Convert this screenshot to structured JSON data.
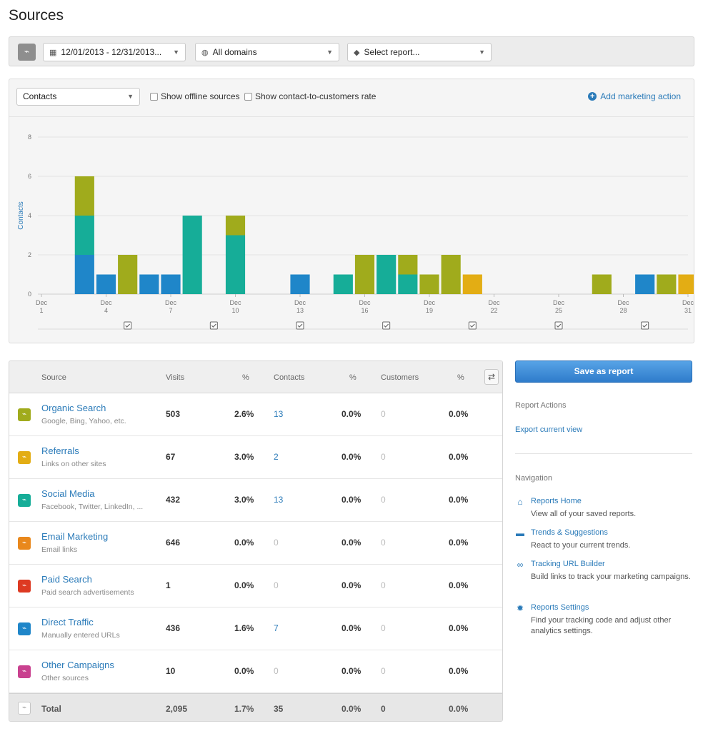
{
  "page": {
    "title": "Sources"
  },
  "toolbar": {
    "date_range": "12/01/2013 - 12/31/2013...",
    "domains": "All domains",
    "report": "Select report..."
  },
  "chart_panel": {
    "metric": "Contacts",
    "show_offline": "Show offline sources",
    "show_rate": "Show contact-to-customers rate",
    "add_action": "Add marketing action"
  },
  "colors": {
    "organic": "#a0ab1c",
    "referrals": "#e3ad14",
    "social": "#16ad98",
    "email": "#e9881c",
    "paid": "#dd3a22",
    "direct": "#1f86c9",
    "other": "#c9418f"
  },
  "chart_data": {
    "type": "bar",
    "stacked": true,
    "ylabel": "Contacts",
    "ylim": [
      0,
      8
    ],
    "yticks": [
      0,
      2,
      4,
      6,
      8
    ],
    "grid": true,
    "days": [
      1,
      2,
      3,
      4,
      5,
      6,
      7,
      8,
      9,
      10,
      11,
      12,
      13,
      14,
      15,
      16,
      17,
      18,
      19,
      20,
      21,
      22,
      23,
      24,
      25,
      26,
      27,
      28,
      29,
      30,
      31
    ],
    "xticks": [
      {
        "day": 1,
        "label": [
          "Dec",
          "1"
        ]
      },
      {
        "day": 4,
        "label": [
          "Dec",
          "4"
        ]
      },
      {
        "day": 7,
        "label": [
          "Dec",
          "7"
        ]
      },
      {
        "day": 10,
        "label": [
          "Dec",
          "10"
        ]
      },
      {
        "day": 13,
        "label": [
          "Dec",
          "13"
        ]
      },
      {
        "day": 16,
        "label": [
          "Dec",
          "16"
        ]
      },
      {
        "day": 19,
        "label": [
          "Dec",
          "19"
        ]
      },
      {
        "day": 22,
        "label": [
          "Dec",
          "22"
        ]
      },
      {
        "day": 25,
        "label": [
          "Dec",
          "25"
        ]
      },
      {
        "day": 28,
        "label": [
          "Dec",
          "28"
        ]
      },
      {
        "day": 31,
        "label": [
          "Dec",
          "31"
        ]
      }
    ],
    "series": [
      {
        "key": "direct",
        "values": [
          0,
          0,
          2,
          1,
          0,
          1,
          1,
          0,
          0,
          0,
          0,
          0,
          1,
          0,
          0,
          0,
          0,
          0,
          0,
          0,
          0,
          0,
          0,
          0,
          0,
          0,
          0,
          0,
          1,
          0,
          0
        ]
      },
      {
        "key": "social",
        "values": [
          0,
          0,
          2,
          0,
          0,
          0,
          0,
          4,
          0,
          3,
          0,
          0,
          0,
          0,
          1,
          0,
          2,
          1,
          0,
          0,
          0,
          0,
          0,
          0,
          0,
          0,
          0,
          0,
          0,
          0,
          0
        ]
      },
      {
        "key": "organic",
        "values": [
          0,
          0,
          2,
          0,
          2,
          0,
          0,
          0,
          0,
          1,
          0,
          0,
          0,
          0,
          0,
          2,
          0,
          1,
          1,
          2,
          0,
          0,
          0,
          0,
          0,
          0,
          1,
          0,
          0,
          1,
          0
        ]
      },
      {
        "key": "referrals",
        "values": [
          0,
          0,
          0,
          0,
          0,
          0,
          0,
          0,
          0,
          0,
          0,
          0,
          0,
          0,
          0,
          0,
          0,
          0,
          0,
          0,
          1,
          0,
          0,
          0,
          0,
          0,
          0,
          0,
          0,
          0,
          1
        ]
      }
    ],
    "marker_days": [
      5,
      9,
      13,
      17,
      21,
      25,
      29
    ]
  },
  "table": {
    "headers": {
      "source": "Source",
      "visits": "Visits",
      "pct1": "%",
      "contacts": "Contacts",
      "pct2": "%",
      "customers": "Customers",
      "pct3": "%"
    },
    "rows": [
      {
        "key": "organic",
        "name": "Organic Search",
        "desc": "Google, Bing, Yahoo, etc.",
        "visits": "503",
        "pct_visits": "2.6%",
        "contacts": "13",
        "pct_contacts": "0.0%",
        "customers": "0",
        "pct_customers": "0.0%"
      },
      {
        "key": "referrals",
        "name": "Referrals",
        "desc": "Links on other sites",
        "visits": "67",
        "pct_visits": "3.0%",
        "contacts": "2",
        "pct_contacts": "0.0%",
        "customers": "0",
        "pct_customers": "0.0%"
      },
      {
        "key": "social",
        "name": "Social Media",
        "desc": "Facebook, Twitter, LinkedIn, ...",
        "visits": "432",
        "pct_visits": "3.0%",
        "contacts": "13",
        "pct_contacts": "0.0%",
        "customers": "0",
        "pct_customers": "0.0%"
      },
      {
        "key": "email",
        "name": "Email Marketing",
        "desc": "Email links",
        "visits": "646",
        "pct_visits": "0.0%",
        "contacts": "0",
        "pct_contacts": "0.0%",
        "customers": "0",
        "pct_customers": "0.0%"
      },
      {
        "key": "paid",
        "name": "Paid Search",
        "desc": "Paid search advertisements",
        "visits": "1",
        "pct_visits": "0.0%",
        "contacts": "0",
        "pct_contacts": "0.0%",
        "customers": "0",
        "pct_customers": "0.0%"
      },
      {
        "key": "direct",
        "name": "Direct Traffic",
        "desc": "Manually entered URLs",
        "visits": "436",
        "pct_visits": "1.6%",
        "contacts": "7",
        "pct_contacts": "0.0%",
        "customers": "0",
        "pct_customers": "0.0%"
      },
      {
        "key": "other",
        "name": "Other Campaigns",
        "desc": "Other sources",
        "visits": "10",
        "pct_visits": "0.0%",
        "contacts": "0",
        "pct_contacts": "0.0%",
        "customers": "0",
        "pct_customers": "0.0%"
      }
    ],
    "total": {
      "label": "Total",
      "visits": "2,095",
      "pct_visits": "1.7%",
      "contacts": "35",
      "pct_contacts": "0.0%",
      "customers": "0",
      "pct_customers": "0.0%"
    }
  },
  "sidebar": {
    "save_label": "Save as report",
    "report_actions": "Report Actions",
    "export": "Export current view",
    "navigation": "Navigation",
    "nav": [
      {
        "icon": "home-icon",
        "label": "Reports Home",
        "desc": "View all of your saved reports."
      },
      {
        "icon": "trends-icon",
        "label": "Trends & Suggestions",
        "desc": "React to your current trends."
      },
      {
        "icon": "link-icon",
        "label": "Tracking URL Builder",
        "desc": "Build links to track your marketing campaigns."
      },
      {
        "icon": "gear-icon",
        "label": "Reports Settings",
        "desc": "Find your tracking code and adjust other analytics settings."
      }
    ]
  }
}
